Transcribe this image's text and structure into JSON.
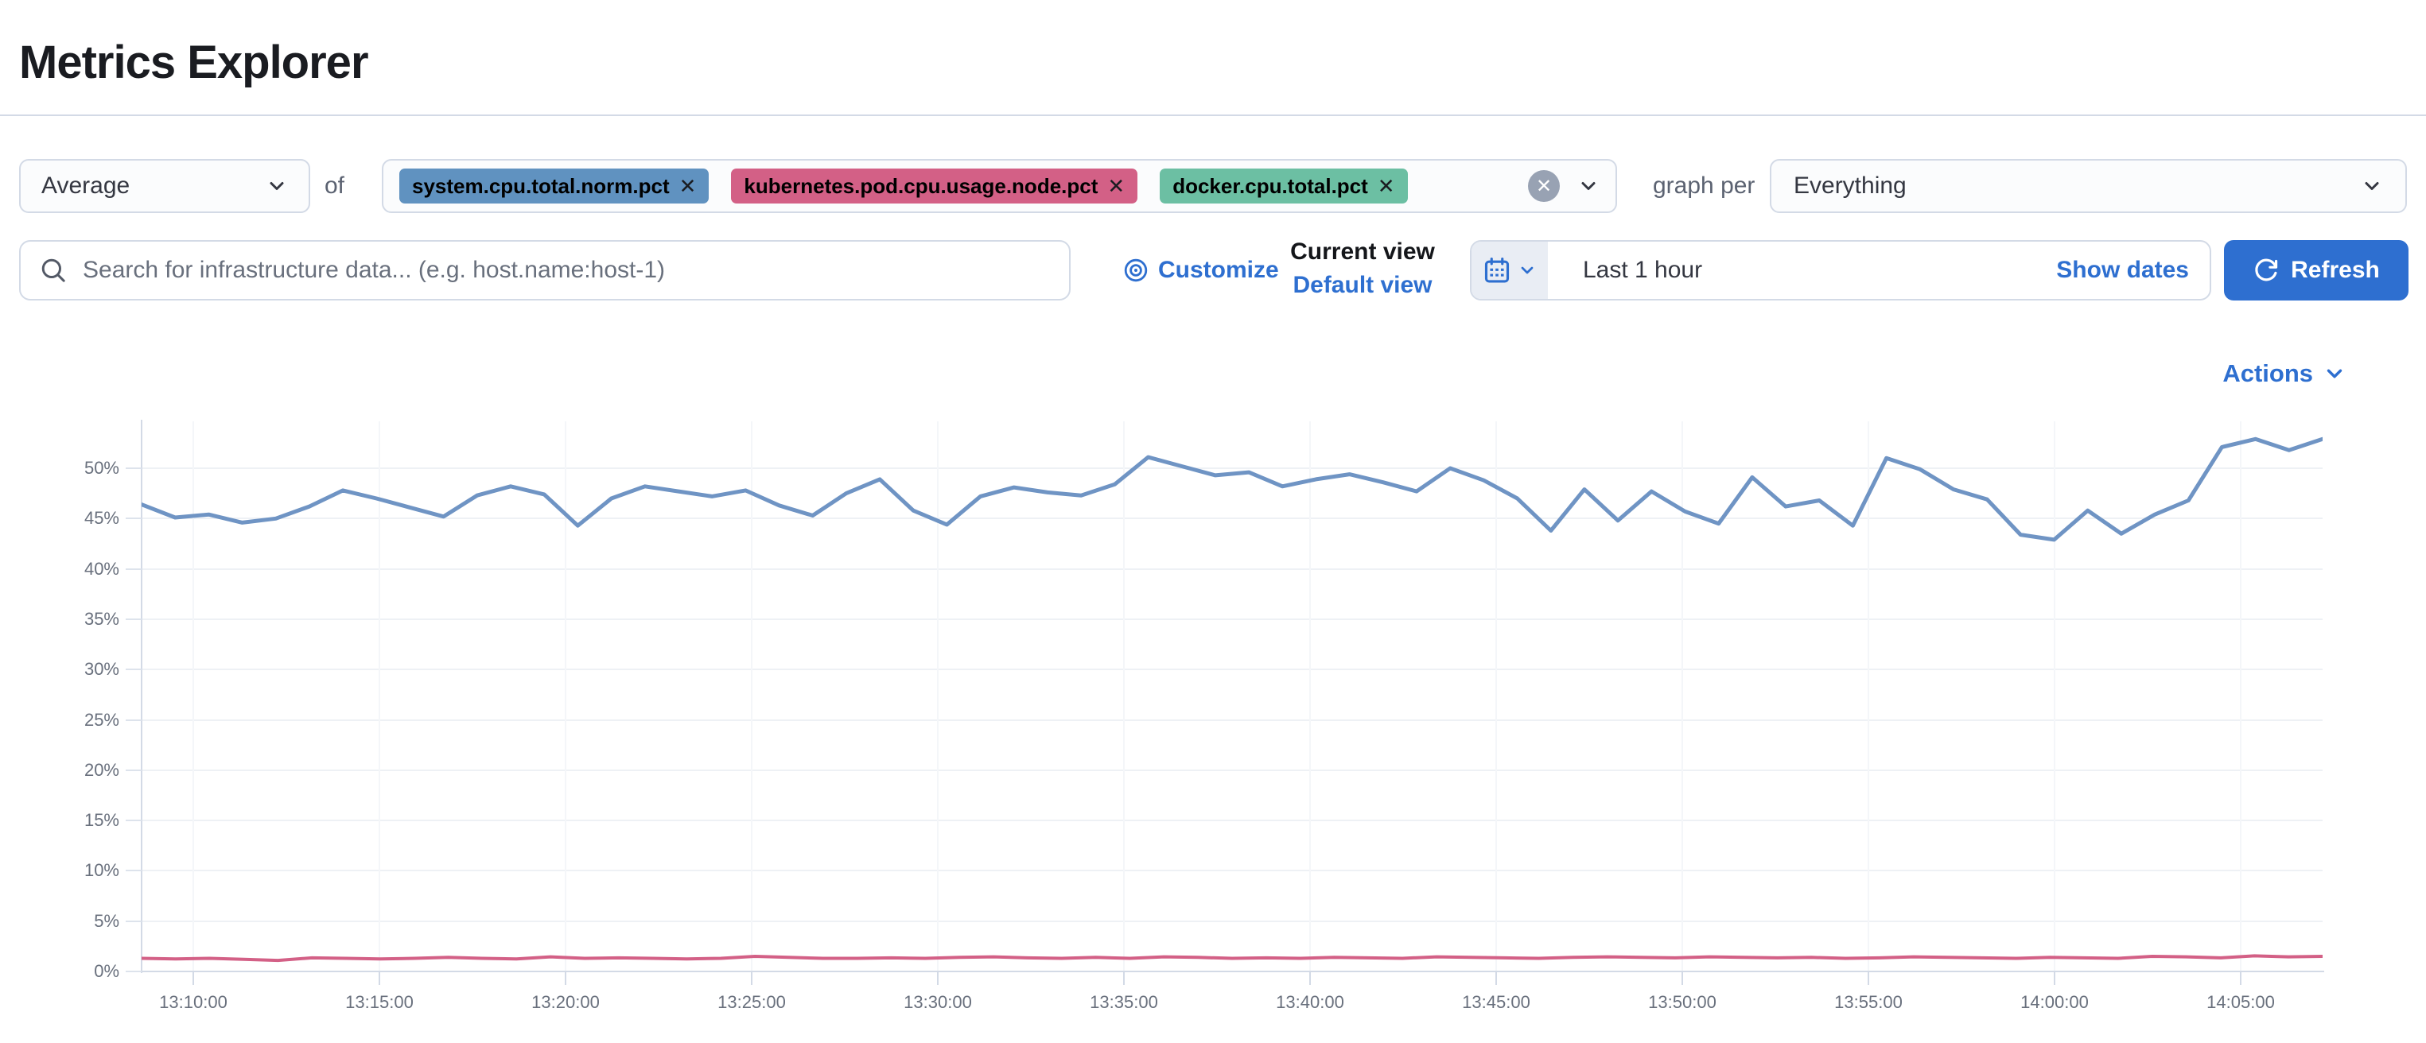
{
  "page": {
    "title": "Metrics Explorer"
  },
  "toolbar": {
    "aggregation": {
      "value": "Average"
    },
    "of_label": "of",
    "metrics": [
      {
        "label": "system.cpu.total.norm.pct",
        "color": "#6092C0",
        "remove_icon": "x"
      },
      {
        "label": "kubernetes.pod.cpu.usage.node.pct",
        "color": "#D36086",
        "remove_icon": "x"
      },
      {
        "label": "docker.cpu.total.pct",
        "color": "#6CBFA3",
        "remove_icon": "x"
      }
    ],
    "clear_all_icon": "✕",
    "graph_per_label": "graph per",
    "group_by": {
      "value": "Everything"
    }
  },
  "search": {
    "placeholder": "Search for infrastructure data... (e.g. host.name:host-1)"
  },
  "view_controls": {
    "customize_label": "Customize",
    "current_view_label": "Current view",
    "default_view_label": "Default view"
  },
  "time_picker": {
    "value": "Last 1 hour",
    "show_dates_label": "Show dates",
    "refresh_label": "Refresh"
  },
  "actions": {
    "label": "Actions"
  },
  "colors": {
    "link_blue": "#2e6fd0",
    "button_blue": "#2e6fd0",
    "border_gray": "#d3dae6",
    "text_dark": "#343741",
    "axis_text_gray": "#69707d"
  },
  "chart_data": {
    "type": "line",
    "title": "",
    "xlabel": "",
    "ylabel": "",
    "unit": "%",
    "grid": true,
    "legend_position": "none",
    "ylim": [
      0,
      54.6
    ],
    "y_ticks": [
      "50%",
      "45%",
      "40%",
      "35%",
      "30%",
      "25%",
      "20%",
      "15%",
      "10%",
      "5%",
      "0%"
    ],
    "x_ticks": [
      "13:10:00",
      "13:15:00",
      "13:20:00",
      "13:25:00",
      "13:30:00",
      "13:35:00",
      "13:40:00",
      "13:45:00",
      "13:50:00",
      "13:55:00",
      "14:00:00",
      "14:05:00"
    ],
    "x_range": [
      "~13:08:00",
      "~14:07:00"
    ],
    "point_interval": "~1 minute",
    "series": [
      {
        "name": "Average system.cpu.total.norm.pct",
        "color": "#6F94C4",
        "values": [
          46.4,
          45.1,
          45.4,
          44.6,
          45.0,
          46.2,
          47.8,
          47.0,
          46.1,
          45.2,
          47.3,
          48.2,
          47.4,
          44.3,
          47.0,
          48.2,
          47.7,
          47.2,
          47.8,
          46.3,
          45.3,
          47.5,
          48.9,
          45.8,
          44.4,
          47.2,
          48.1,
          47.6,
          47.3,
          48.4,
          51.1,
          50.2,
          49.3,
          49.6,
          48.2,
          48.9,
          49.4,
          48.6,
          47.7,
          50.0,
          48.8,
          47.0,
          43.8,
          47.9,
          44.8,
          47.7,
          45.7,
          44.5,
          49.1,
          46.2,
          46.8,
          44.3,
          51.0,
          49.9,
          47.9,
          46.9,
          43.4,
          42.9,
          45.8,
          43.5,
          45.4,
          46.8,
          52.1,
          52.9,
          51.8,
          52.9
        ]
      },
      {
        "name": "Average kubernetes.pod.cpu.usage.node.pct",
        "color": "#D36086",
        "values": [
          1.3,
          1.25,
          1.3,
          1.2,
          1.1,
          1.35,
          1.3,
          1.25,
          1.3,
          1.4,
          1.3,
          1.25,
          1.45,
          1.3,
          1.35,
          1.3,
          1.25,
          1.3,
          1.5,
          1.4,
          1.3,
          1.3,
          1.35,
          1.3,
          1.4,
          1.45,
          1.35,
          1.3,
          1.4,
          1.3,
          1.45,
          1.4,
          1.3,
          1.35,
          1.3,
          1.4,
          1.35,
          1.3,
          1.45,
          1.4,
          1.35,
          1.3,
          1.4,
          1.45,
          1.4,
          1.35,
          1.45,
          1.4,
          1.35,
          1.4,
          1.3,
          1.35,
          1.45,
          1.4,
          1.35,
          1.3,
          1.4,
          1.35,
          1.3,
          1.5,
          1.45,
          1.35,
          1.55,
          1.45,
          1.5
        ]
      }
    ]
  }
}
